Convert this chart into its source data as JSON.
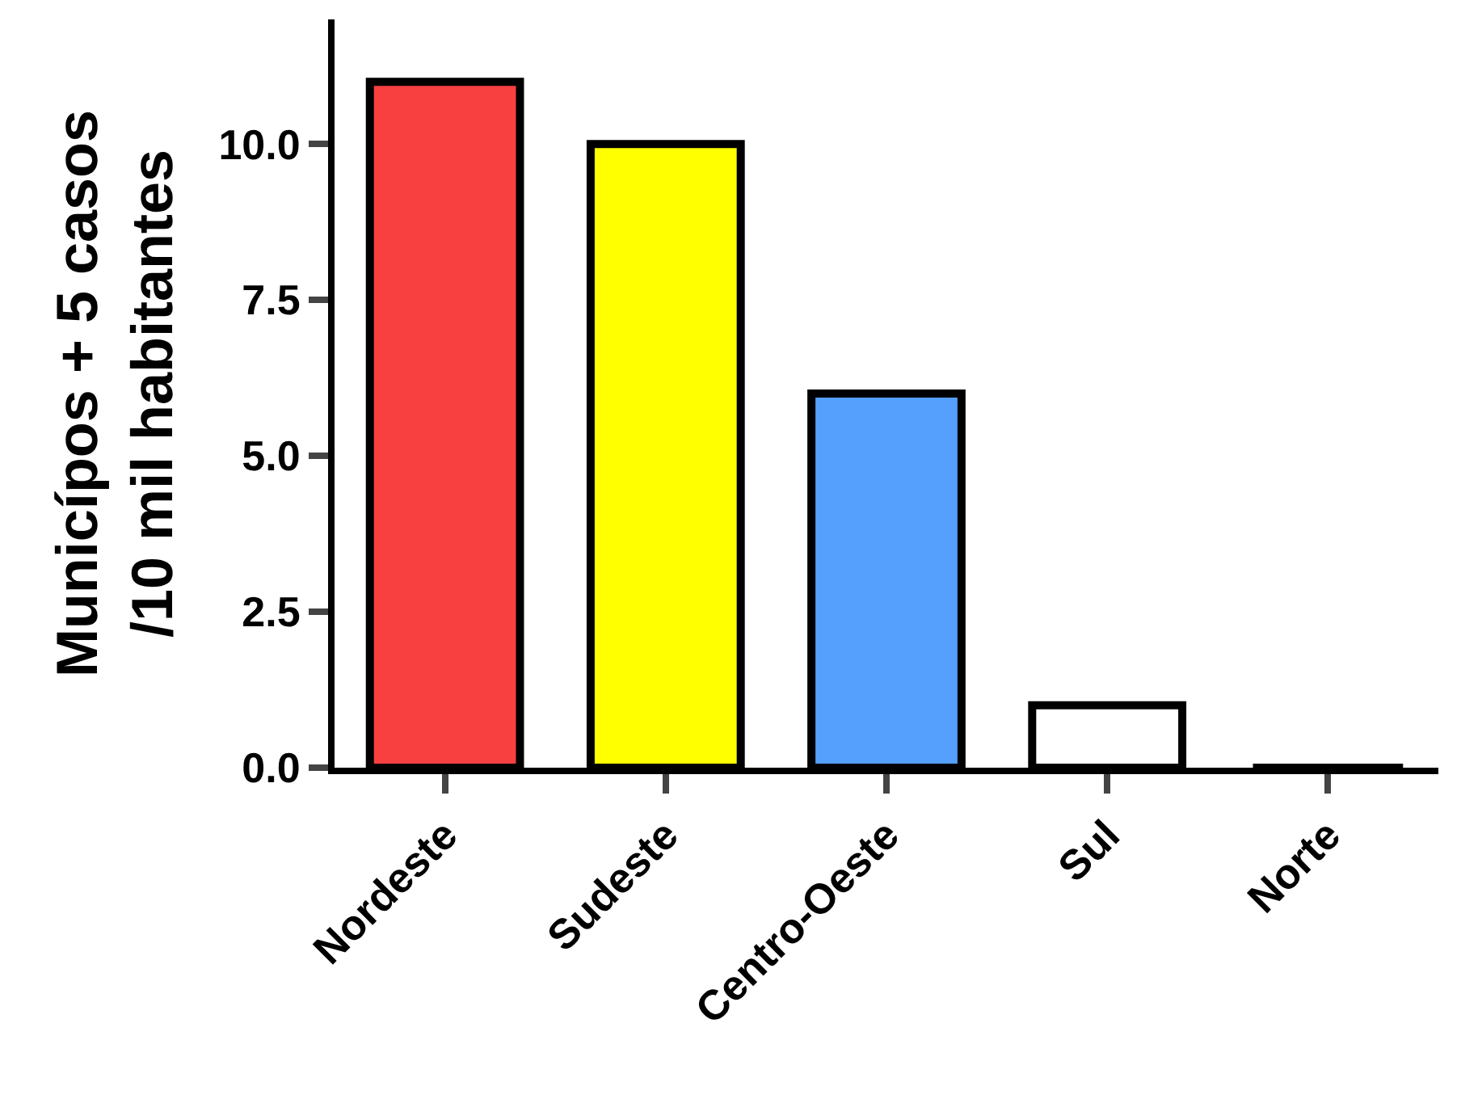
{
  "chart_data": {
    "type": "bar",
    "ylabel": "Municípos + 5 casos\n/10 mil habitantes",
    "categories": [
      "Nordeste",
      "Sudeste",
      "Centro-Oeste",
      "Sul",
      "Norte"
    ],
    "values": [
      11,
      10,
      6,
      1,
      0
    ],
    "colors": [
      "#f84040",
      "#ffff00",
      "#559ffd",
      "#ffffff",
      "#000000"
    ],
    "ylim": [
      0,
      12
    ],
    "yticks": [
      {
        "value": 0,
        "label": "0.0"
      },
      {
        "value": 2.5,
        "label": "2.5"
      },
      {
        "value": 5,
        "label": "5.0"
      },
      {
        "value": 7.5,
        "label": "7.5"
      },
      {
        "value": 10,
        "label": "10.0"
      }
    ],
    "grid": false
  }
}
